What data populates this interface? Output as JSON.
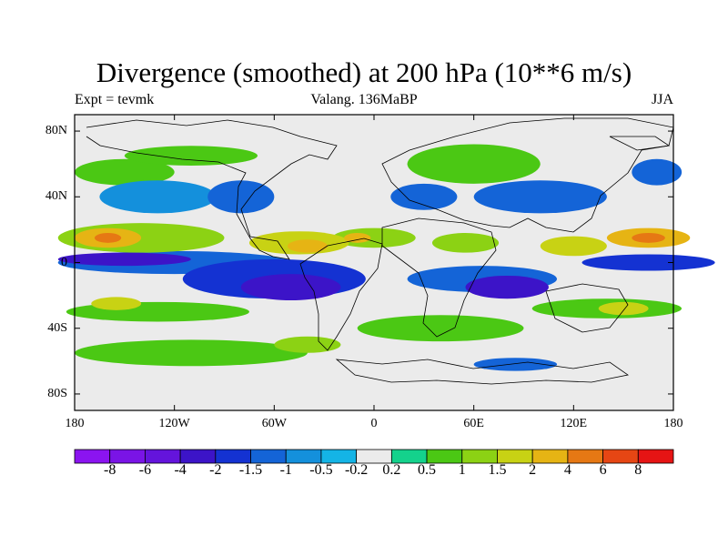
{
  "title": "Divergence (smoothed) at 200 hPa (10**6 m/s)",
  "experiment": "Expt = tevmk",
  "period": "Valang. 136MaBP",
  "season": "JJA",
  "lat_ticks": [
    {
      "value": 80,
      "label": "80N"
    },
    {
      "value": 40,
      "label": "40N"
    },
    {
      "value": 0,
      "label": "0"
    },
    {
      "value": -40,
      "label": "40S"
    },
    {
      "value": -80,
      "label": "80S"
    }
  ],
  "lon_ticks": [
    {
      "value": -180,
      "label": "180"
    },
    {
      "value": -120,
      "label": "120W"
    },
    {
      "value": -60,
      "label": "60W"
    },
    {
      "value": 0,
      "label": "0"
    },
    {
      "value": 60,
      "label": "60E"
    },
    {
      "value": 120,
      "label": "120E"
    },
    {
      "value": 180,
      "label": "180"
    }
  ],
  "colorbar": {
    "labels": [
      "-8",
      "-6",
      "-4",
      "-2",
      "-1.5",
      "-1",
      "-0.5",
      "-0.2",
      "0.2",
      "0.5",
      "1",
      "1.5",
      "2",
      "4",
      "6",
      "8"
    ],
    "colors": [
      "#8b14f0",
      "#7a14e6",
      "#6414dc",
      "#3c14c8",
      "#1432d2",
      "#1464d7",
      "#1490dc",
      "#14b4e6",
      "#ebebeb",
      "#14d28c",
      "#4bc814",
      "#8cd214",
      "#c8d214",
      "#e6b414",
      "#e67814",
      "#e64614",
      "#e61414"
    ]
  },
  "map_data": {
    "lat_range": [
      -90,
      90
    ],
    "lon_range": [
      -180,
      180
    ],
    "zero_color": "#ebebeb",
    "features": [
      {
        "lon": -160,
        "lat": 15,
        "rx": 20,
        "ry": 6,
        "v": 4
      },
      {
        "lon": -160,
        "lat": 15,
        "rx": 8,
        "ry": 3,
        "v": 6
      },
      {
        "lon": -140,
        "lat": 15,
        "rx": 50,
        "ry": 9,
        "v": 1.5
      },
      {
        "lon": -150,
        "lat": 2,
        "rx": 40,
        "ry": 4,
        "v": -2
      },
      {
        "lon": -120,
        "lat": 0,
        "rx": 70,
        "ry": 7,
        "v": -1
      },
      {
        "lon": -60,
        "lat": -10,
        "rx": 55,
        "ry": 12,
        "v": -1.5
      },
      {
        "lon": -50,
        "lat": -15,
        "rx": 30,
        "ry": 8,
        "v": -3
      },
      {
        "lon": 65,
        "lat": -10,
        "rx": 45,
        "ry": 8,
        "v": -1
      },
      {
        "lon": 80,
        "lat": -15,
        "rx": 25,
        "ry": 7,
        "v": -3
      },
      {
        "lon": 165,
        "lat": 0,
        "rx": 40,
        "ry": 5,
        "v": -1.5
      },
      {
        "lon": -130,
        "lat": -30,
        "rx": 55,
        "ry": 6,
        "v": 1
      },
      {
        "lon": -155,
        "lat": -25,
        "rx": 15,
        "ry": 4,
        "v": 2
      },
      {
        "lon": 140,
        "lat": -28,
        "rx": 45,
        "ry": 6,
        "v": 1
      },
      {
        "lon": 150,
        "lat": -28,
        "rx": 15,
        "ry": 4,
        "v": 2
      },
      {
        "lon": 40,
        "lat": -40,
        "rx": 50,
        "ry": 8,
        "v": 0.6
      },
      {
        "lon": -110,
        "lat": -55,
        "rx": 70,
        "ry": 8,
        "v": 0.6
      },
      {
        "lon": -40,
        "lat": -50,
        "rx": 20,
        "ry": 5,
        "v": 1.2
      },
      {
        "lon": -150,
        "lat": 55,
        "rx": 30,
        "ry": 8,
        "v": 0.6
      },
      {
        "lon": -110,
        "lat": 65,
        "rx": 40,
        "ry": 6,
        "v": 0.6
      },
      {
        "lon": -130,
        "lat": 40,
        "rx": 35,
        "ry": 10,
        "v": -0.6
      },
      {
        "lon": -80,
        "lat": 40,
        "rx": 20,
        "ry": 10,
        "v": -1
      },
      {
        "lon": -45,
        "lat": 12,
        "rx": 30,
        "ry": 7,
        "v": 2
      },
      {
        "lon": -40,
        "lat": 10,
        "rx": 12,
        "ry": 4,
        "v": 4
      },
      {
        "lon": 0,
        "lat": 15,
        "rx": 25,
        "ry": 6,
        "v": 1.5
      },
      {
        "lon": -10,
        "lat": 15,
        "rx": 8,
        "ry": 3,
        "v": 4
      },
      {
        "lon": 55,
        "lat": 12,
        "rx": 20,
        "ry": 6,
        "v": 1.2
      },
      {
        "lon": 120,
        "lat": 10,
        "rx": 20,
        "ry": 6,
        "v": 2
      },
      {
        "lon": 165,
        "lat": 15,
        "rx": 25,
        "ry": 6,
        "v": 4
      },
      {
        "lon": 165,
        "lat": 15,
        "rx": 10,
        "ry": 3,
        "v": 6
      },
      {
        "lon": 100,
        "lat": 40,
        "rx": 40,
        "ry": 10,
        "v": -1.2
      },
      {
        "lon": 30,
        "lat": 40,
        "rx": 20,
        "ry": 8,
        "v": -1.2
      },
      {
        "lon": 60,
        "lat": 60,
        "rx": 40,
        "ry": 12,
        "v": 0.6
      },
      {
        "lon": 170,
        "lat": 55,
        "rx": 15,
        "ry": 8,
        "v": -1
      },
      {
        "lon": 85,
        "lat": -62,
        "rx": 25,
        "ry": 4,
        "v": -1
      }
    ]
  }
}
